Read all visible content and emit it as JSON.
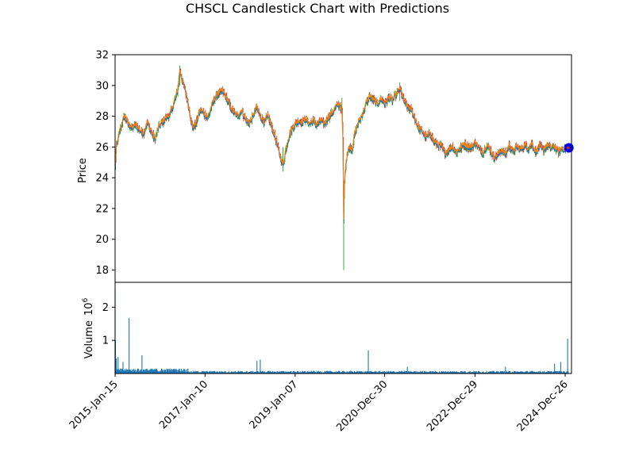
{
  "chart_data": [
    {
      "type": "candlestick",
      "title": "CHSCL Candlestick Chart with Predictions",
      "ylabel": "Price",
      "ylim": [
        17.2,
        32
      ],
      "yticks": [
        18,
        20,
        22,
        24,
        26,
        28,
        30,
        32
      ],
      "x_start": "2015-01-15",
      "x_end": "2025-02-15",
      "xticks": [
        "2015-Jan-15",
        "2017-Jan-10",
        "2019-Jan-07",
        "2020-Dec-30",
        "2022-Dec-29",
        "2024-Dec-26"
      ],
      "xtick_dates": [
        "2015-01-15",
        "2017-01-10",
        "2019-01-07",
        "2020-12-30",
        "2022-12-29",
        "2024-12-26"
      ],
      "colors": {
        "up": "#2ca02c",
        "down": "#d62728",
        "open_line": "#1f77b4",
        "close_line": "#ff7f0e",
        "prediction": "#0000ff"
      },
      "price_path": [
        [
          "2015-01-15",
          24.6
        ],
        [
          "2015-01-25",
          26.0
        ],
        [
          "2015-02-15",
          26.8
        ],
        [
          "2015-03-10",
          27.5
        ],
        [
          "2015-04-01",
          28.0
        ],
        [
          "2015-05-01",
          27.5
        ],
        [
          "2015-06-01",
          27.2
        ],
        [
          "2015-07-01",
          27.4
        ],
        [
          "2015-08-01",
          27.1
        ],
        [
          "2015-09-01",
          26.9
        ],
        [
          "2015-10-01",
          27.6
        ],
        [
          "2015-11-01",
          27.0
        ],
        [
          "2015-12-01",
          26.5
        ],
        [
          "2016-01-01",
          27.3
        ],
        [
          "2016-02-01",
          27.6
        ],
        [
          "2016-03-01",
          27.9
        ],
        [
          "2016-04-01",
          28.1
        ],
        [
          "2016-05-01",
          28.8
        ],
        [
          "2016-06-01",
          29.6
        ],
        [
          "2016-06-20",
          31.0
        ],
        [
          "2016-07-15",
          30.2
        ],
        [
          "2016-08-10",
          29.4
        ],
        [
          "2016-09-10",
          28.2
        ],
        [
          "2016-10-01",
          27.2
        ],
        [
          "2016-11-01",
          27.6
        ],
        [
          "2016-12-01",
          28.4
        ],
        [
          "2017-01-01",
          28.2
        ],
        [
          "2017-02-01",
          27.9
        ],
        [
          "2017-03-01",
          28.6
        ],
        [
          "2017-04-01",
          29.2
        ],
        [
          "2017-05-01",
          29.5
        ],
        [
          "2017-06-01",
          29.6
        ],
        [
          "2017-07-01",
          29.2
        ],
        [
          "2017-08-01",
          28.6
        ],
        [
          "2017-09-01",
          28.2
        ],
        [
          "2017-10-01",
          28.0
        ],
        [
          "2017-11-01",
          28.4
        ],
        [
          "2017-12-01",
          27.8
        ],
        [
          "2018-01-01",
          27.5
        ],
        [
          "2018-02-01",
          28.0
        ],
        [
          "2018-03-01",
          28.6
        ],
        [
          "2018-04-01",
          28.0
        ],
        [
          "2018-05-01",
          27.6
        ],
        [
          "2018-06-01",
          28.0
        ],
        [
          "2018-07-01",
          27.3
        ],
        [
          "2018-08-01",
          26.6
        ],
        [
          "2018-09-01",
          25.6
        ],
        [
          "2018-10-01",
          24.8
        ],
        [
          "2018-11-01",
          26.2
        ],
        [
          "2018-12-01",
          27.0
        ],
        [
          "2019-01-01",
          27.4
        ],
        [
          "2019-02-01",
          27.7
        ],
        [
          "2019-03-01",
          27.6
        ],
        [
          "2019-04-01",
          27.8
        ],
        [
          "2019-05-01",
          27.5
        ],
        [
          "2019-06-01",
          27.7
        ],
        [
          "2019-07-01",
          27.4
        ],
        [
          "2019-08-01",
          27.7
        ],
        [
          "2019-09-01",
          27.5
        ],
        [
          "2019-10-01",
          27.9
        ],
        [
          "2019-11-01",
          28.2
        ],
        [
          "2019-12-01",
          28.6
        ],
        [
          "2020-01-01",
          28.8
        ],
        [
          "2020-01-20",
          28.2
        ],
        [
          "2020-01-28",
          26.5
        ],
        [
          "2020-02-03",
          21.2
        ],
        [
          "2020-02-06",
          22.8
        ],
        [
          "2020-02-15",
          24.5
        ],
        [
          "2020-03-01",
          25.5
        ],
        [
          "2020-03-20",
          26.0
        ],
        [
          "2020-04-10",
          25.8
        ],
        [
          "2020-05-01",
          26.8
        ],
        [
          "2020-06-01",
          27.6
        ],
        [
          "2020-07-01",
          28.1
        ],
        [
          "2020-08-01",
          28.8
        ],
        [
          "2020-09-01",
          29.3
        ],
        [
          "2020-10-01",
          29.0
        ],
        [
          "2020-11-01",
          28.8
        ],
        [
          "2020-12-01",
          29.1
        ],
        [
          "2021-01-01",
          28.8
        ],
        [
          "2021-02-01",
          29.2
        ],
        [
          "2021-03-01",
          29.0
        ],
        [
          "2021-04-01",
          29.4
        ],
        [
          "2021-05-01",
          29.8
        ],
        [
          "2021-06-01",
          29.0
        ],
        [
          "2021-07-01",
          28.6
        ],
        [
          "2021-08-01",
          28.4
        ],
        [
          "2021-09-01",
          27.8
        ],
        [
          "2021-10-01",
          27.2
        ],
        [
          "2021-11-01",
          27.0
        ],
        [
          "2021-12-01",
          26.6
        ],
        [
          "2022-01-01",
          26.9
        ],
        [
          "2022-02-01",
          26.3
        ],
        [
          "2022-03-01",
          26.2
        ],
        [
          "2022-04-01",
          26.0
        ],
        [
          "2022-05-01",
          25.6
        ],
        [
          "2022-06-01",
          25.8
        ],
        [
          "2022-07-01",
          26.0
        ],
        [
          "2022-08-01",
          25.6
        ],
        [
          "2022-09-01",
          25.9
        ],
        [
          "2022-10-01",
          26.2
        ],
        [
          "2022-11-01",
          26.0
        ],
        [
          "2022-12-01",
          26.0
        ],
        [
          "2023-01-01",
          26.3
        ],
        [
          "2023-02-01",
          25.9
        ],
        [
          "2023-03-01",
          25.6
        ],
        [
          "2023-04-01",
          26.1
        ],
        [
          "2023-05-01",
          25.8
        ],
        [
          "2023-06-01",
          25.3
        ],
        [
          "2023-07-01",
          25.5
        ],
        [
          "2023-08-01",
          25.8
        ],
        [
          "2023-09-01",
          25.5
        ],
        [
          "2023-10-01",
          26.1
        ],
        [
          "2023-11-01",
          25.7
        ],
        [
          "2023-12-01",
          26.0
        ],
        [
          "2024-01-01",
          25.8
        ],
        [
          "2024-02-01",
          26.1
        ],
        [
          "2024-03-01",
          25.9
        ],
        [
          "2024-04-01",
          26.2
        ],
        [
          "2024-05-01",
          25.7
        ],
        [
          "2024-06-01",
          26.0
        ],
        [
          "2024-07-01",
          25.8
        ],
        [
          "2024-08-01",
          26.1
        ],
        [
          "2024-09-01",
          25.9
        ],
        [
          "2024-10-01",
          26.0
        ],
        [
          "2024-11-01",
          25.7
        ],
        [
          "2024-12-01",
          25.9
        ],
        [
          "2025-01-01",
          25.8
        ],
        [
          "2025-01-20",
          25.9
        ]
      ],
      "spikes": [
        [
          "2015-01-15",
          24.2,
          29.4
        ],
        [
          "2020-02-03",
          18.0,
          23.8
        ],
        [
          "2020-01-20",
          28.2,
          29.2
        ],
        [
          "2016-06-20",
          30.0,
          31.3
        ],
        [
          "2021-05-01",
          29.0,
          30.2
        ],
        [
          "2018-10-01",
          24.4,
          26.0
        ]
      ],
      "prediction": {
        "date": "2025-01-25",
        "value": 25.95
      }
    },
    {
      "type": "bar",
      "ylabel": "Volume",
      "yexponent": "6",
      "ylim": [
        0,
        2.75
      ],
      "yticks": [
        1,
        2
      ],
      "tall_bars": [
        [
          "2015-01-15",
          2.55
        ],
        [
          "2015-01-18",
          1.0
        ],
        [
          "2015-01-25",
          0.45
        ],
        [
          "2015-02-08",
          0.5
        ],
        [
          "2015-03-20",
          0.35
        ],
        [
          "2015-05-08",
          1.67
        ],
        [
          "2015-08-20",
          0.55
        ],
        [
          "2018-03-05",
          0.38
        ],
        [
          "2018-04-01",
          0.42
        ],
        [
          "2020-08-20",
          0.7
        ],
        [
          "2021-07-01",
          0.2
        ],
        [
          "2023-09-01",
          0.2
        ],
        [
          "2024-10-01",
          0.3
        ],
        [
          "2024-11-20",
          0.35
        ],
        [
          "2025-01-15",
          1.05
        ]
      ]
    }
  ]
}
